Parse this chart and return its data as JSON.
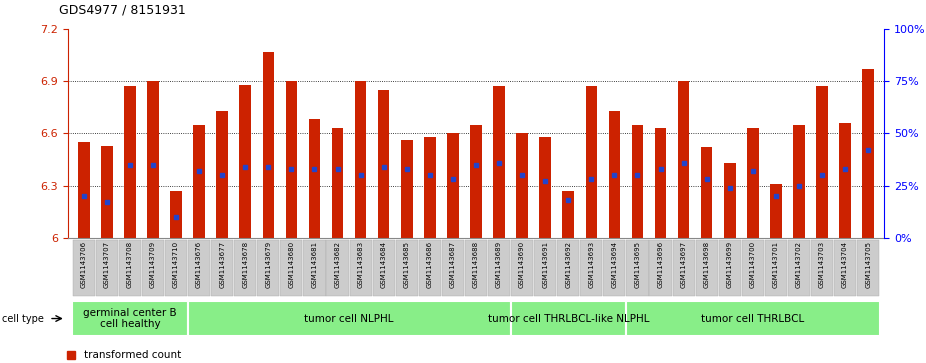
{
  "title": "GDS4977 / 8151931",
  "samples": [
    "GSM1143706",
    "GSM1143707",
    "GSM1143708",
    "GSM1143709",
    "GSM1143710",
    "GSM1143676",
    "GSM1143677",
    "GSM1143678",
    "GSM1143679",
    "GSM1143680",
    "GSM1143681",
    "GSM1143682",
    "GSM1143683",
    "GSM1143684",
    "GSM1143685",
    "GSM1143686",
    "GSM1143687",
    "GSM1143688",
    "GSM1143689",
    "GSM1143690",
    "GSM1143691",
    "GSM1143692",
    "GSM1143693",
    "GSM1143694",
    "GSM1143695",
    "GSM1143696",
    "GSM1143697",
    "GSM1143698",
    "GSM1143699",
    "GSM1143700",
    "GSM1143701",
    "GSM1143702",
    "GSM1143703",
    "GSM1143704",
    "GSM1143705"
  ],
  "transformed_count": [
    6.55,
    6.53,
    6.87,
    6.9,
    6.27,
    6.65,
    6.73,
    6.88,
    7.07,
    6.9,
    6.68,
    6.63,
    6.9,
    6.85,
    6.56,
    6.58,
    6.6,
    6.65,
    6.87,
    6.6,
    6.58,
    6.27,
    6.87,
    6.73,
    6.65,
    6.63,
    6.9,
    6.52,
    6.43,
    6.63,
    6.31,
    6.65,
    6.87,
    6.66,
    6.97
  ],
  "percentile_rank": [
    20,
    17,
    35,
    35,
    10,
    32,
    30,
    34,
    34,
    33,
    33,
    33,
    30,
    34,
    33,
    30,
    28,
    35,
    36,
    30,
    27,
    18,
    28,
    30,
    30,
    33,
    36,
    28,
    24,
    32,
    20,
    25,
    30,
    33,
    42
  ],
  "cell_type_groups": [
    {
      "label": "germinal center B\ncell healthy",
      "start": 0,
      "end": 5
    },
    {
      "label": "tumor cell NLPHL",
      "start": 5,
      "end": 19
    },
    {
      "label": "tumor cell THRLBCL-like NLPHL",
      "start": 19,
      "end": 24
    },
    {
      "label": "tumor cell THRLBCL",
      "start": 24,
      "end": 35
    }
  ],
  "ymin": 6.0,
  "ymax": 7.2,
  "yticks": [
    6.0,
    6.3,
    6.6,
    6.9,
    7.2
  ],
  "ytick_labels": [
    "6",
    "6.3",
    "6.6",
    "6.9",
    "7.2"
  ],
  "right_yticks": [
    0,
    25,
    50,
    75,
    100
  ],
  "right_ytick_labels": [
    "0%",
    "25%",
    "50%",
    "75%",
    "100%"
  ],
  "bar_color": "#cc2200",
  "percentile_color": "#2244cc",
  "cell_type_color": "#88ee88",
  "xtick_bg": "#cccccc"
}
